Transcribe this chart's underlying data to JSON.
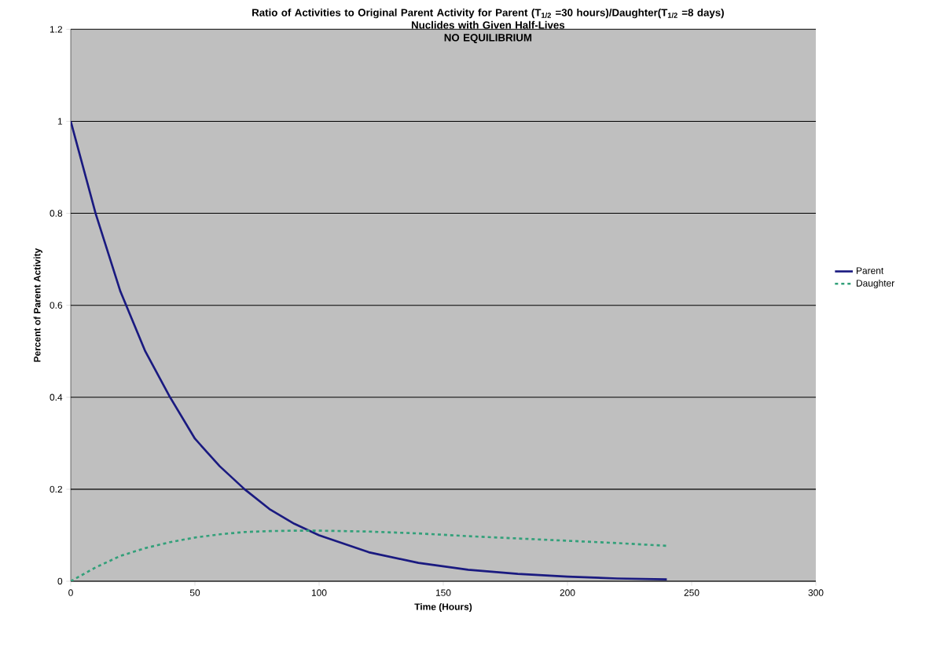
{
  "chart_data": {
    "type": "line",
    "title": "Ratio of Activities to Original Parent Activity for Parent (T$_{1/2}$ =30 hours)/Daughter(T$_{1/2}$ =8 days)",
    "subtitle": "Nuclides with Given Half-Lives",
    "annotations": [
      "NO EQUILIBRIUM"
    ],
    "xlabel": "Time (Hours)",
    "ylabel": "Percent of Parent Activity",
    "x": [
      0,
      10,
      20,
      30,
      40,
      50,
      60,
      70,
      80,
      90,
      100,
      120,
      140,
      160,
      180,
      200,
      220,
      240
    ],
    "series": [
      {
        "name": "Parent",
        "color": "#1a1a80",
        "values": [
          1,
          0.8,
          0.63,
          0.5,
          0.4,
          0.31,
          0.25,
          0.2,
          0.157,
          0.125,
          0.1,
          0.063,
          0.04,
          0.025,
          0.016,
          0.01,
          0.006,
          0.004
        ]
      },
      {
        "name": "Daughter",
        "color": "#33a07a",
        "line_style": "dashed",
        "values": [
          0,
          0.03,
          0.055,
          0.072,
          0.085,
          0.095,
          0.102,
          0.107,
          0.109,
          0.11,
          0.11,
          0.108,
          0.104,
          0.098,
          0.093,
          0.088,
          0.083,
          0.077
        ]
      }
    ],
    "xlim": [
      0,
      300
    ],
    "xticks": [
      0,
      50,
      100,
      150,
      200,
      250,
      300
    ],
    "ylim": [
      0,
      1.2
    ],
    "yticks": [
      0,
      0.2,
      0.4,
      0.6,
      0.8,
      1,
      1.2
    ],
    "grid": "y",
    "legend": "right",
    "marker": "none"
  }
}
